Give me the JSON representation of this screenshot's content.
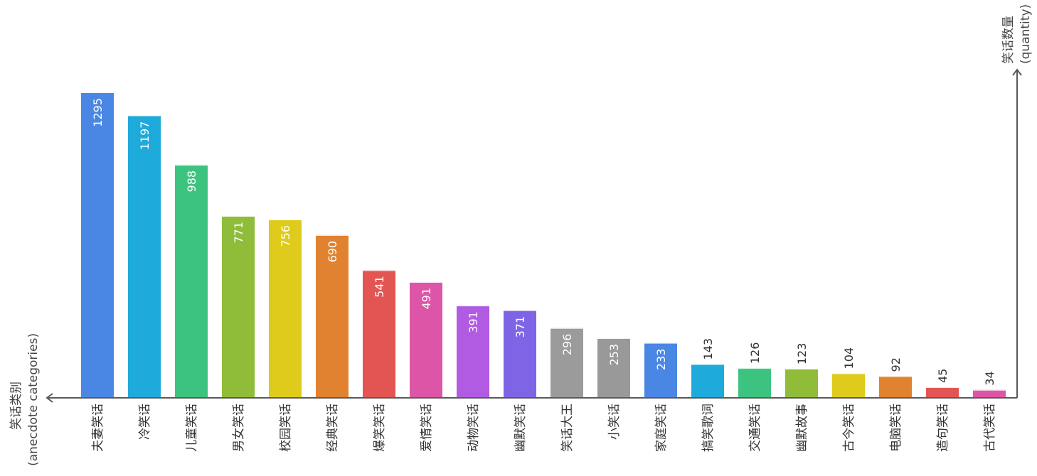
{
  "chart_data": {
    "type": "bar",
    "orientation": "vertical",
    "x_axis_title": [
      "笑话类别",
      "(anecdote categories)"
    ],
    "y_axis_title": [
      "笑话数量",
      "(quantity)"
    ],
    "categories": [
      "夫妻笑话",
      "冷笑话",
      "儿童笑话",
      "男女笑话",
      "校园笑话",
      "经典笑话",
      "爆笑笑话",
      "爱情笑话",
      "动物笑话",
      "幽默笑话",
      "笑话大王",
      "小笑话",
      "家庭笑话",
      "搞笑歌词",
      "交通笑话",
      "幽默故事",
      "古今笑话",
      "电脑笑话",
      "造句笑话",
      "古代笑话"
    ],
    "values": [
      1295,
      1197,
      988,
      771,
      756,
      690,
      541,
      491,
      391,
      371,
      296,
      253,
      233,
      143,
      126,
      123,
      104,
      92,
      45,
      34
    ],
    "colors": [
      "#4a87e4",
      "#1eaadb",
      "#3dc380",
      "#8fbd3a",
      "#dfcb1b",
      "#e0822f",
      "#e35552",
      "#dd55a6",
      "#b05be2",
      "#7f65e6",
      "#9b9b9b",
      "#999999",
      "#4a87e4",
      "#1eaadb",
      "#3dc380",
      "#8fbd3a",
      "#dfcb1b",
      "#e0822f",
      "#e35552",
      "#dd55a6"
    ],
    "ylim": [
      0,
      1300
    ],
    "grid": false,
    "legend": "none"
  }
}
